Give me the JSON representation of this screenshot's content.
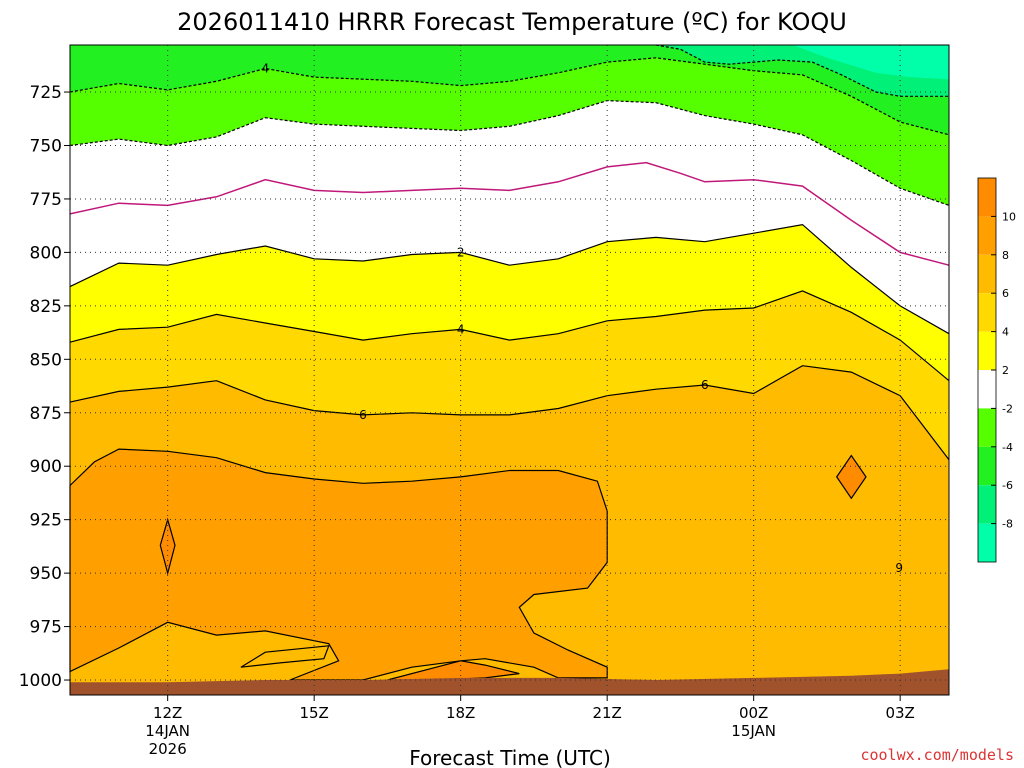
{
  "colors": {
    "band_m10_m8": "#00ffa8",
    "band_m8_m6": "#00f078",
    "band_m6_m4": "#22f020",
    "band_m4_m2": "#55ff00",
    "band_m2_2": "#ffffff",
    "band_2_4": "#ffff00",
    "band_4_6": "#ffd900",
    "band_6_8": "#ffbb00",
    "band_8_10": "#ffa000",
    "band_10_12": "#ff8c00",
    "ground": "#a0522d",
    "zero_isotherm": "#c0187a",
    "credit": "#dd3333"
  },
  "credit": "coolwx.com/models",
  "chart_data": {
    "type": "heatmap",
    "title": "2026011410 HRRR Forecast Temperature (ºC) for KOQU",
    "xlabel": "Forecast Time (UTC)",
    "ylabel": "",
    "x_ticks": [
      {
        "pos": 12,
        "label": "12Z",
        "sub1": "14JAN",
        "sub2": "2026"
      },
      {
        "pos": 15,
        "label": "15Z",
        "sub1": "",
        "sub2": ""
      },
      {
        "pos": 18,
        "label": "18Z",
        "sub1": "",
        "sub2": ""
      },
      {
        "pos": 21,
        "label": "21Z",
        "sub1": "",
        "sub2": ""
      },
      {
        "pos": 24,
        "label": "00Z",
        "sub1": "15JAN",
        "sub2": ""
      },
      {
        "pos": 27,
        "label": "03Z",
        "sub1": "",
        "sub2": ""
      }
    ],
    "xlim": [
      10,
      28
    ],
    "y_ticks": [
      725,
      750,
      775,
      800,
      825,
      850,
      875,
      900,
      925,
      950,
      975,
      1000
    ],
    "ylim": [
      703,
      1007
    ],
    "y_axis": "pressure (hPa), inverted",
    "grid": true,
    "colorbar": {
      "ticks": [
        10,
        8,
        6,
        4,
        2,
        -2,
        -4,
        -6,
        -8
      ],
      "range": [
        -10,
        12
      ],
      "placement": "right"
    },
    "contour_lines": [
      {
        "level": -6,
        "style": "dashed",
        "points": [
          [
            22,
            703
          ],
          [
            22.5,
            705
          ],
          [
            23,
            711
          ],
          [
            23.5,
            712
          ],
          [
            24,
            711
          ],
          [
            24.5,
            710
          ],
          [
            25.2,
            711
          ],
          [
            25.8,
            717
          ],
          [
            26.5,
            725
          ],
          [
            27,
            727
          ],
          [
            27.5,
            727
          ],
          [
            28,
            727
          ]
        ]
      },
      {
        "level": -4,
        "style": "dashed",
        "points": [
          [
            10,
            725
          ],
          [
            11,
            721
          ],
          [
            12,
            724
          ],
          [
            13,
            720
          ],
          [
            14,
            714
          ],
          [
            15,
            718
          ],
          [
            16,
            719
          ],
          [
            17,
            720
          ],
          [
            18,
            722
          ],
          [
            19,
            720
          ],
          [
            20,
            716
          ],
          [
            21,
            711
          ],
          [
            22,
            709
          ],
          [
            23,
            712
          ],
          [
            24,
            715
          ],
          [
            25,
            717
          ],
          [
            26,
            727
          ],
          [
            27,
            739
          ],
          [
            28,
            745
          ]
        ]
      },
      {
        "level": -2,
        "style": "dashed",
        "points": [
          [
            10,
            750
          ],
          [
            11,
            747
          ],
          [
            12,
            750
          ],
          [
            13,
            746
          ],
          [
            14,
            737
          ],
          [
            15,
            740
          ],
          [
            16,
            741
          ],
          [
            17,
            742
          ],
          [
            18,
            743
          ],
          [
            19,
            741
          ],
          [
            20,
            736
          ],
          [
            21,
            729
          ],
          [
            22,
            730
          ],
          [
            23,
            736
          ],
          [
            24,
            740
          ],
          [
            25,
            745
          ],
          [
            26,
            757
          ],
          [
            27,
            770
          ],
          [
            28,
            778
          ]
        ]
      },
      {
        "level": 0,
        "style": "magenta",
        "points": [
          [
            10,
            782
          ],
          [
            11,
            777
          ],
          [
            12,
            778
          ],
          [
            13,
            774
          ],
          [
            14,
            766
          ],
          [
            15,
            771
          ],
          [
            16,
            772
          ],
          [
            17,
            771
          ],
          [
            18,
            770
          ],
          [
            19,
            771
          ],
          [
            20,
            767
          ],
          [
            21,
            760
          ],
          [
            21.8,
            758
          ],
          [
            22.5,
            763
          ],
          [
            23,
            767
          ],
          [
            24,
            766
          ],
          [
            25,
            769
          ],
          [
            26,
            785
          ],
          [
            27,
            800
          ],
          [
            28,
            806
          ]
        ]
      },
      {
        "level": 2,
        "style": "solid",
        "label_at": 18,
        "points": [
          [
            10,
            816
          ],
          [
            11,
            805
          ],
          [
            12,
            806
          ],
          [
            13,
            801
          ],
          [
            14,
            797
          ],
          [
            15,
            803
          ],
          [
            16,
            804
          ],
          [
            17,
            801
          ],
          [
            18,
            800
          ],
          [
            19,
            806
          ],
          [
            20,
            803
          ],
          [
            21,
            795
          ],
          [
            22,
            793
          ],
          [
            23,
            795
          ],
          [
            24,
            791
          ],
          [
            25,
            787
          ],
          [
            26,
            807
          ],
          [
            27,
            825
          ],
          [
            28,
            838
          ]
        ]
      },
      {
        "level": 4,
        "style": "solid",
        "label_at": 18,
        "points": [
          [
            10,
            842
          ],
          [
            11,
            836
          ],
          [
            12,
            835
          ],
          [
            13,
            829
          ],
          [
            14,
            833
          ],
          [
            15,
            837
          ],
          [
            16,
            841
          ],
          [
            17,
            838
          ],
          [
            18,
            836
          ],
          [
            19,
            841
          ],
          [
            20,
            838
          ],
          [
            21,
            832
          ],
          [
            22,
            830
          ],
          [
            23,
            827
          ],
          [
            24,
            826
          ],
          [
            25,
            818
          ],
          [
            26,
            828
          ],
          [
            27,
            841
          ],
          [
            28,
            860
          ]
        ]
      },
      {
        "level": 6,
        "style": "solid",
        "label_at": 16,
        "points": [
          [
            10,
            870
          ],
          [
            11,
            865
          ],
          [
            12,
            863
          ],
          [
            13,
            860
          ],
          [
            14,
            869
          ],
          [
            15,
            874
          ],
          [
            16,
            876
          ],
          [
            17,
            875
          ],
          [
            18,
            876
          ],
          [
            19,
            876
          ],
          [
            20,
            873
          ],
          [
            21,
            867
          ],
          [
            22,
            864
          ],
          [
            23,
            862
          ],
          [
            24,
            866
          ],
          [
            25,
            853
          ],
          [
            26,
            856
          ],
          [
            27,
            867
          ],
          [
            28,
            897
          ]
        ]
      }
    ],
    "contour_8_region": {
      "level": 8,
      "points": [
        [
          10,
          909
        ],
        [
          10.5,
          898
        ],
        [
          11,
          892
        ],
        [
          12,
          893
        ],
        [
          13,
          896
        ],
        [
          14,
          903
        ],
        [
          15,
          906
        ],
        [
          16,
          908
        ],
        [
          17,
          907
        ],
        [
          18,
          905
        ],
        [
          19,
          902
        ],
        [
          20,
          902
        ],
        [
          20.8,
          907
        ],
        [
          21,
          921
        ],
        [
          21,
          945
        ],
        [
          20.6,
          957
        ],
        [
          19.5,
          960
        ],
        [
          19.2,
          966
        ],
        [
          19.5,
          978
        ],
        [
          20.2,
          986
        ],
        [
          21,
          994
        ],
        [
          21,
          999
        ],
        [
          20,
          999
        ],
        [
          19.5,
          994
        ],
        [
          18.5,
          990
        ],
        [
          18,
          991
        ],
        [
          17,
          994
        ],
        [
          16,
          1000
        ],
        [
          15,
          1000
        ],
        [
          14.5,
          1000
        ],
        [
          15.5,
          991
        ],
        [
          15.3,
          983
        ],
        [
          14,
          977
        ],
        [
          13,
          979
        ],
        [
          12,
          973
        ],
        [
          11,
          985
        ],
        [
          10,
          996
        ],
        [
          10,
          909
        ]
      ]
    },
    "contour_8_islands": [
      {
        "level": 8,
        "points": [
          [
            14,
            987
          ],
          [
            15.3,
            984
          ],
          [
            15.2,
            990
          ],
          [
            14.3,
            992
          ],
          [
            13.5,
            994
          ],
          [
            14,
            987
          ]
        ]
      }
    ],
    "contour_10_islands": [
      {
        "level": 10,
        "points": [
          [
            11.85,
            937
          ],
          [
            12,
            925
          ],
          [
            12.15,
            937
          ],
          [
            12,
            950
          ]
        ]
      },
      {
        "level": 10,
        "points": [
          [
            25.7,
            905
          ],
          [
            26,
            895
          ],
          [
            26.3,
            905
          ],
          [
            26,
            915
          ]
        ]
      },
      {
        "level": 10,
        "points": [
          [
            16.5,
            1000
          ],
          [
            17.5,
            994
          ],
          [
            18,
            991
          ],
          [
            18.5,
            993
          ],
          [
            19.2,
            997
          ],
          [
            18.5,
            999
          ],
          [
            17.5,
            1000
          ]
        ]
      }
    ],
    "small_mark": {
      "x": 26.98,
      "y": 948,
      "label": "9"
    },
    "surface_pressure": [
      [
        10,
        1001
      ],
      [
        12,
        1001
      ],
      [
        14,
        1000
      ],
      [
        16,
        1000
      ],
      [
        18,
        999
      ],
      [
        20,
        999
      ],
      [
        22,
        1000
      ],
      [
        24,
        999
      ],
      [
        26,
        998
      ],
      [
        27,
        997
      ],
      [
        28,
        995
      ]
    ]
  }
}
